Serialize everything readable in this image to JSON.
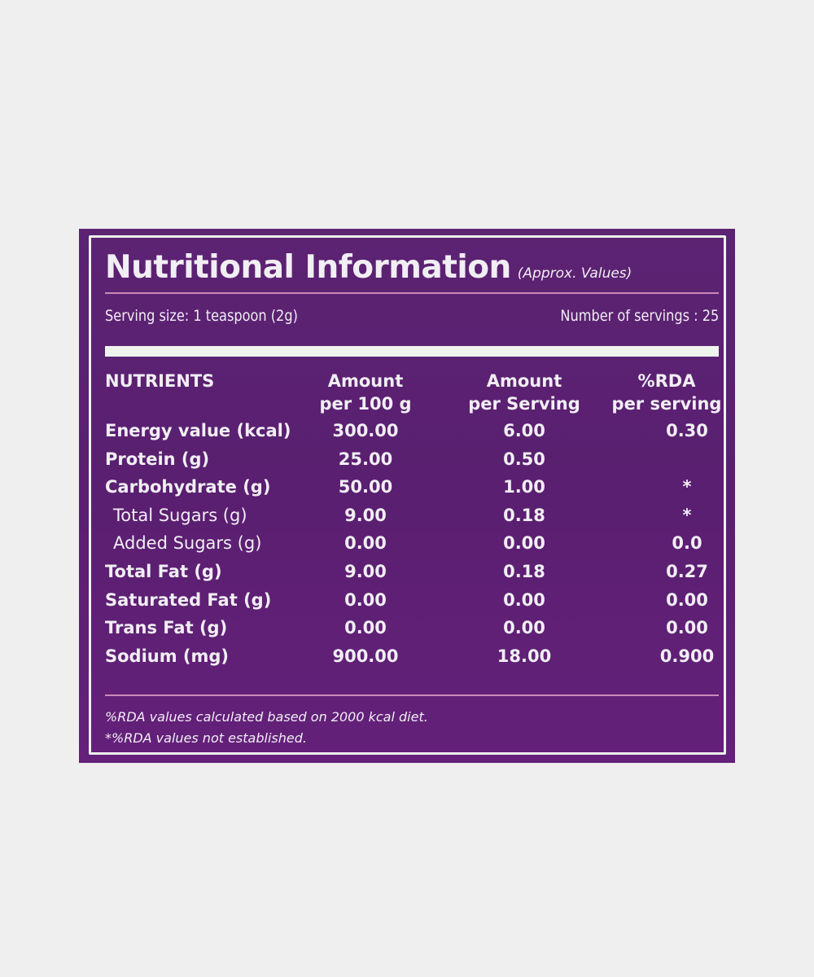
{
  "label": {
    "title": "Nutritional Information",
    "subtitle": "(Approx. Values)",
    "serving_size": "Serving size: 1 teaspoon (2g)",
    "number_of_servings": "Number of servings : 25",
    "columns": [
      {
        "line1": "NUTRIENTS",
        "line2": ""
      },
      {
        "line1": "Amount",
        "line2": "per 100 g"
      },
      {
        "line1": "Amount",
        "line2": "per Serving"
      },
      {
        "line1": "%RDA",
        "line2": "per serving"
      }
    ],
    "rows": [
      {
        "name": "Energy value (kcal)",
        "per100": "300.00",
        "perServing": "6.00",
        "rda": "0.30"
      },
      {
        "name": "Protein (g)",
        "per100": "25.00",
        "perServing": "0.50",
        "rda": ""
      },
      {
        "name": "Carbohydrate (g)",
        "per100": "50.00",
        "perServing": "1.00",
        "rda": "*"
      },
      {
        "name": "Total Sugars (g)",
        "per100": "9.00",
        "perServing": "0.18",
        "rda": "*"
      },
      {
        "name": "Added Sugars (g)",
        "per100": "0.00",
        "perServing": "0.00",
        "rda": "0.0"
      },
      {
        "name": "Total Fat (g)",
        "per100": "9.00",
        "perServing": "0.18",
        "rda": "0.27"
      },
      {
        "name": "Saturated Fat (g)",
        "per100": "0.00",
        "perServing": "0.00",
        "rda": "0.00"
      },
      {
        "name": "Trans Fat (g)",
        "per100": "0.00",
        "perServing": "0.00",
        "rda": "0.00"
      },
      {
        "name": "Sodium (mg)",
        "per100": "900.00",
        "perServing": "18.00",
        "rda": "0.900"
      }
    ],
    "footnotes": [
      "%RDA values calculated based on 2000 kcal diet.",
      "*%RDA values not established."
    ]
  },
  "colors": {
    "background": "#efefef",
    "panel": "#5c2373",
    "text": "#f1eef4"
  }
}
